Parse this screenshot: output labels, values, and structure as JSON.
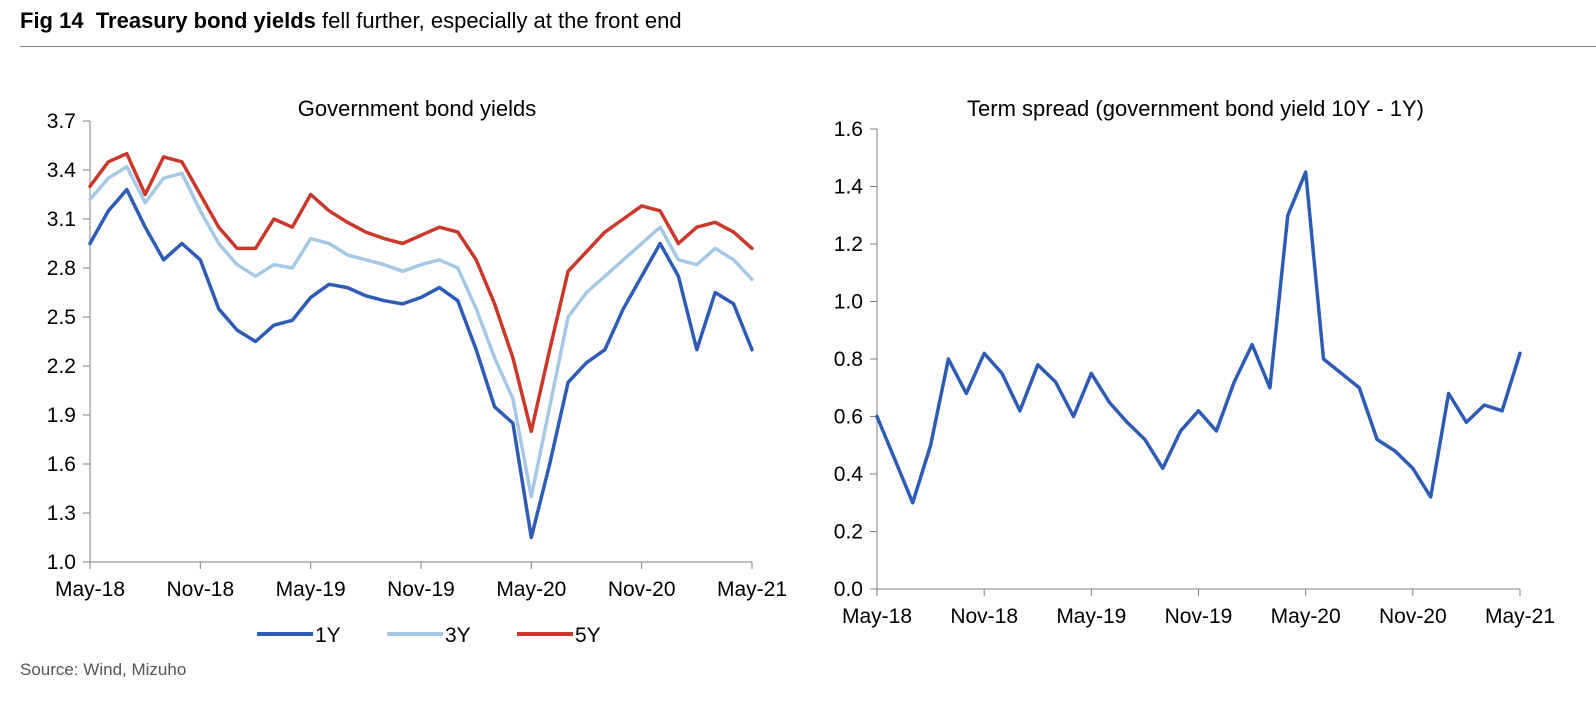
{
  "figure": {
    "number": "Fig 14",
    "headline_bold": "Treasury bond yields",
    "headline_rest": "fell further, especially at the front end",
    "source": "Source: Wind, Mizuho"
  },
  "colors": {
    "y1": "#2e5bb3",
    "y3": "#a6c8e6",
    "y5": "#c8392b",
    "spread": "#2e5bb3",
    "axis": "#808080"
  },
  "chart_data": [
    {
      "type": "line",
      "title": "Government bond yields",
      "xlabel": "",
      "ylabel": "",
      "x_ticks": [
        "May-18",
        "Nov-18",
        "May-19",
        "Nov-19",
        "May-20",
        "Nov-20",
        "May-21"
      ],
      "y_ticks": [
        "1.0",
        "1.3",
        "1.6",
        "1.9",
        "2.2",
        "2.5",
        "2.8",
        "3.1",
        "3.4",
        "3.7"
      ],
      "ylim": [
        1.0,
        3.7
      ],
      "xlim": [
        "2018-05",
        "2021-05"
      ],
      "grid": false,
      "legend": "bottom",
      "series": [
        {
          "name": "1Y",
          "color": "#2e5bb3",
          "x": [
            "2018-05",
            "2018-06",
            "2018-07",
            "2018-08",
            "2018-09",
            "2018-10",
            "2018-11",
            "2018-12",
            "2019-01",
            "2019-02",
            "2019-03",
            "2019-04",
            "2019-05",
            "2019-06",
            "2019-07",
            "2019-08",
            "2019-09",
            "2019-10",
            "2019-11",
            "2019-12",
            "2020-01",
            "2020-02",
            "2020-03",
            "2020-04",
            "2020-05",
            "2020-06",
            "2020-07",
            "2020-08",
            "2020-09",
            "2020-10",
            "2020-11",
            "2020-12",
            "2021-01",
            "2021-02",
            "2021-03",
            "2021-04",
            "2021-05"
          ],
          "values": [
            2.95,
            3.15,
            3.28,
            3.05,
            2.85,
            2.95,
            2.85,
            2.55,
            2.42,
            2.35,
            2.45,
            2.48,
            2.62,
            2.7,
            2.68,
            2.63,
            2.6,
            2.58,
            2.62,
            2.68,
            2.6,
            2.3,
            1.95,
            1.85,
            1.15,
            1.6,
            2.1,
            2.22,
            2.3,
            2.55,
            2.75,
            2.95,
            2.75,
            2.3,
            2.65,
            2.58,
            2.3
          ]
        },
        {
          "name": "3Y",
          "color": "#a6c8e6",
          "x": [
            "2018-05",
            "2018-06",
            "2018-07",
            "2018-08",
            "2018-09",
            "2018-10",
            "2018-11",
            "2018-12",
            "2019-01",
            "2019-02",
            "2019-03",
            "2019-04",
            "2019-05",
            "2019-06",
            "2019-07",
            "2019-08",
            "2019-09",
            "2019-10",
            "2019-11",
            "2019-12",
            "2020-01",
            "2020-02",
            "2020-03",
            "2020-04",
            "2020-05",
            "2020-06",
            "2020-07",
            "2020-08",
            "2020-09",
            "2020-10",
            "2020-11",
            "2020-12",
            "2021-01",
            "2021-02",
            "2021-03",
            "2021-04",
            "2021-05"
          ],
          "values": [
            3.22,
            3.35,
            3.42,
            3.2,
            3.35,
            3.38,
            3.15,
            2.95,
            2.82,
            2.75,
            2.82,
            2.8,
            2.98,
            2.95,
            2.88,
            2.85,
            2.82,
            2.78,
            2.82,
            2.85,
            2.8,
            2.55,
            2.25,
            2.0,
            1.4,
            1.95,
            2.5,
            2.65,
            2.75,
            2.85,
            2.95,
            3.05,
            2.85,
            2.82,
            2.92,
            2.85,
            2.73
          ]
        },
        {
          "name": "5Y",
          "color": "#c8392b",
          "x": [
            "2018-05",
            "2018-06",
            "2018-07",
            "2018-08",
            "2018-09",
            "2018-10",
            "2018-11",
            "2018-12",
            "2019-01",
            "2019-02",
            "2019-03",
            "2019-04",
            "2019-05",
            "2019-06",
            "2019-07",
            "2019-08",
            "2019-09",
            "2019-10",
            "2019-11",
            "2019-12",
            "2020-01",
            "2020-02",
            "2020-03",
            "2020-04",
            "2020-05",
            "2020-06",
            "2020-07",
            "2020-08",
            "2020-09",
            "2020-10",
            "2020-11",
            "2020-12",
            "2021-01",
            "2021-02",
            "2021-03",
            "2021-04",
            "2021-05"
          ],
          "values": [
            3.3,
            3.45,
            3.5,
            3.25,
            3.48,
            3.45,
            3.25,
            3.05,
            2.92,
            2.92,
            3.1,
            3.05,
            3.25,
            3.15,
            3.08,
            3.02,
            2.98,
            2.95,
            3.0,
            3.05,
            3.02,
            2.85,
            2.58,
            2.25,
            1.8,
            2.3,
            2.78,
            2.9,
            3.02,
            3.1,
            3.18,
            3.15,
            2.95,
            3.05,
            3.08,
            3.02,
            2.92
          ]
        }
      ]
    },
    {
      "type": "line",
      "title": "Term spread (government bond yield 10Y - 1Y)",
      "xlabel": "",
      "ylabel": "",
      "x_ticks": [
        "May-18",
        "Nov-18",
        "May-19",
        "Nov-19",
        "May-20",
        "Nov-20",
        "May-21"
      ],
      "y_ticks": [
        "0.0",
        "0.2",
        "0.4",
        "0.6",
        "0.8",
        "1.0",
        "1.2",
        "1.4",
        "1.6"
      ],
      "ylim": [
        0.0,
        1.6
      ],
      "xlim": [
        "2018-05",
        "2021-05"
      ],
      "grid": false,
      "legend": "none",
      "series": [
        {
          "color": "#2e5bb3",
          "x": [
            "2018-05",
            "2018-06",
            "2018-07",
            "2018-08",
            "2018-09",
            "2018-10",
            "2018-11",
            "2018-12",
            "2019-01",
            "2019-02",
            "2019-03",
            "2019-04",
            "2019-05",
            "2019-06",
            "2019-07",
            "2019-08",
            "2019-09",
            "2019-10",
            "2019-11",
            "2019-12",
            "2020-01",
            "2020-02",
            "2020-03",
            "2020-04",
            "2020-05",
            "2020-06",
            "2020-07",
            "2020-08",
            "2020-09",
            "2020-10",
            "2020-11",
            "2020-12",
            "2021-01",
            "2021-02",
            "2021-03",
            "2021-04",
            "2021-05"
          ],
          "values": [
            0.6,
            0.45,
            0.3,
            0.5,
            0.8,
            0.68,
            0.82,
            0.75,
            0.62,
            0.78,
            0.72,
            0.6,
            0.75,
            0.65,
            0.58,
            0.52,
            0.42,
            0.55,
            0.62,
            0.55,
            0.72,
            0.85,
            0.7,
            1.3,
            1.45,
            0.8,
            0.75,
            0.7,
            0.52,
            0.48,
            0.42,
            0.32,
            0.68,
            0.58,
            0.64,
            0.62,
            0.82
          ]
        }
      ]
    }
  ]
}
